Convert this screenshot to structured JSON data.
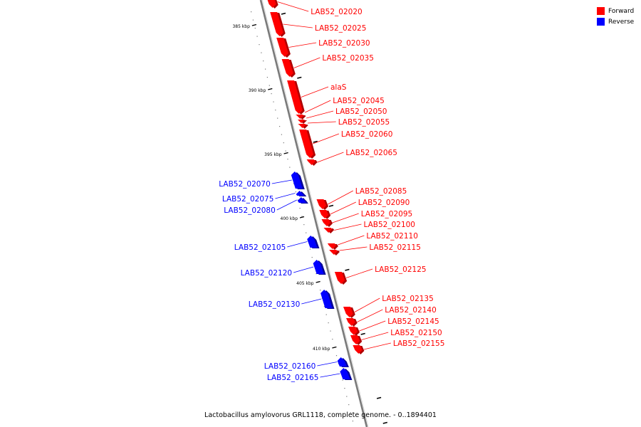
{
  "caption": "Lactobacillus amylovorus GRL1118, complete genome. - 0..1894401",
  "legend": [
    {
      "label": "Forward",
      "color": "#ff0000"
    },
    {
      "label": "Reverse",
      "color": "#0000ff"
    }
  ],
  "colors": {
    "forward": "#ff0000",
    "forward_dark": "#b00000",
    "reverse": "#0000ff",
    "reverse_dark": "#00009a",
    "backbone": "#7a7a7a"
  },
  "ticks": [
    "385 kbp",
    "390 kbp",
    "395 kbp",
    "400 kbp",
    "405 kbp",
    "410 kbp"
  ],
  "genes": [
    {
      "name": "LAB52_02020",
      "strand": "forward"
    },
    {
      "name": "LAB52_02025",
      "strand": "forward"
    },
    {
      "name": "LAB52_02030",
      "strand": "forward"
    },
    {
      "name": "LAB52_02035",
      "strand": "forward"
    },
    {
      "name": "alaS",
      "strand": "forward"
    },
    {
      "name": "LAB52_02045",
      "strand": "forward"
    },
    {
      "name": "LAB52_02050",
      "strand": "forward"
    },
    {
      "name": "LAB52_02055",
      "strand": "forward"
    },
    {
      "name": "LAB52_02060",
      "strand": "forward"
    },
    {
      "name": "LAB52_02065",
      "strand": "forward"
    },
    {
      "name": "LAB52_02070",
      "strand": "reverse"
    },
    {
      "name": "LAB52_02075",
      "strand": "reverse"
    },
    {
      "name": "LAB52_02080",
      "strand": "reverse"
    },
    {
      "name": "LAB52_02085",
      "strand": "forward"
    },
    {
      "name": "LAB52_02090",
      "strand": "forward"
    },
    {
      "name": "LAB52_02095",
      "strand": "forward"
    },
    {
      "name": "LAB52_02100",
      "strand": "forward"
    },
    {
      "name": "LAB52_02110",
      "strand": "forward"
    },
    {
      "name": "LAB52_02115",
      "strand": "forward"
    },
    {
      "name": "LAB52_02105",
      "strand": "reverse"
    },
    {
      "name": "LAB52_02120",
      "strand": "reverse"
    },
    {
      "name": "LAB52_02125",
      "strand": "forward"
    },
    {
      "name": "LAB52_02130",
      "strand": "reverse"
    },
    {
      "name": "LAB52_02135",
      "strand": "forward"
    },
    {
      "name": "LAB52_02140",
      "strand": "forward"
    },
    {
      "name": "LAB52_02145",
      "strand": "forward"
    },
    {
      "name": "LAB52_02150",
      "strand": "forward"
    },
    {
      "name": "LAB52_02155",
      "strand": "forward"
    },
    {
      "name": "LAB52_02160",
      "strand": "reverse"
    },
    {
      "name": "LAB52_02165",
      "strand": "reverse"
    }
  ]
}
